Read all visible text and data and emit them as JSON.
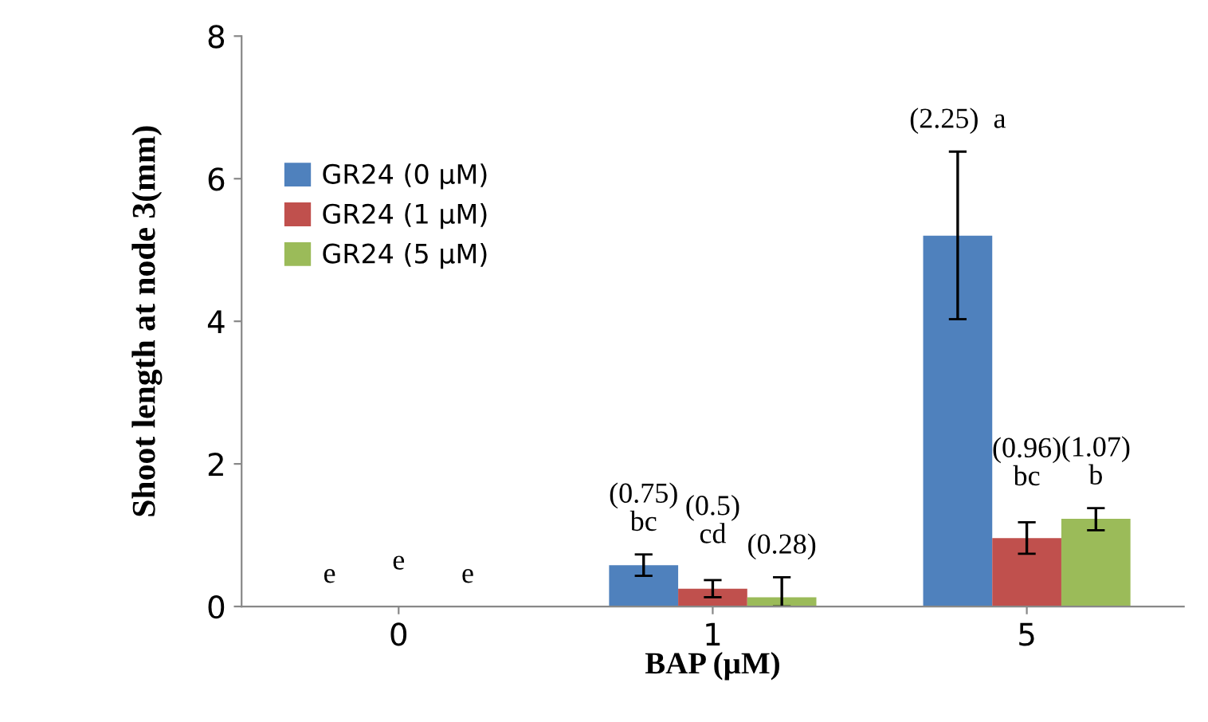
{
  "chart_data": {
    "type": "bar",
    "xlabel": "BAP (µM)",
    "ylabel": "Shoot length at node 3(mm)",
    "categories": [
      "0",
      "1",
      "5"
    ],
    "series": [
      {
        "name": "GR24 (0 µM)",
        "color": "#4f81bd",
        "values": [
          0,
          0.58,
          5.2
        ],
        "errors": [
          null,
          [
            0.43,
            0.73
          ],
          [
            4.03,
            6.38
          ]
        ]
      },
      {
        "name": "GR24 (1 µM)",
        "color": "#c0504d",
        "values": [
          0,
          0.25,
          0.96
        ],
        "errors": [
          null,
          [
            0.13,
            0.37
          ],
          [
            0.74,
            1.18
          ]
        ]
      },
      {
        "name": "GR24 (5 µM)",
        "color": "#9bbb59",
        "values": [
          0,
          0.13,
          1.23
        ],
        "errors": [
          null,
          [
            0,
            0.41
          ],
          [
            1.07,
            1.38
          ]
        ]
      }
    ],
    "annotations": [
      "e",
      "e",
      "e",
      "(0.75)\nbc",
      "(0.5)\ncd",
      "(0.28)",
      "(2.25)  a",
      "(0.96)\nbc",
      "(1.07)\nb"
    ],
    "ylim": [
      0,
      8
    ],
    "yticks": [
      0,
      2,
      4,
      6,
      8
    ],
    "grid": false,
    "legend": "top left"
  }
}
